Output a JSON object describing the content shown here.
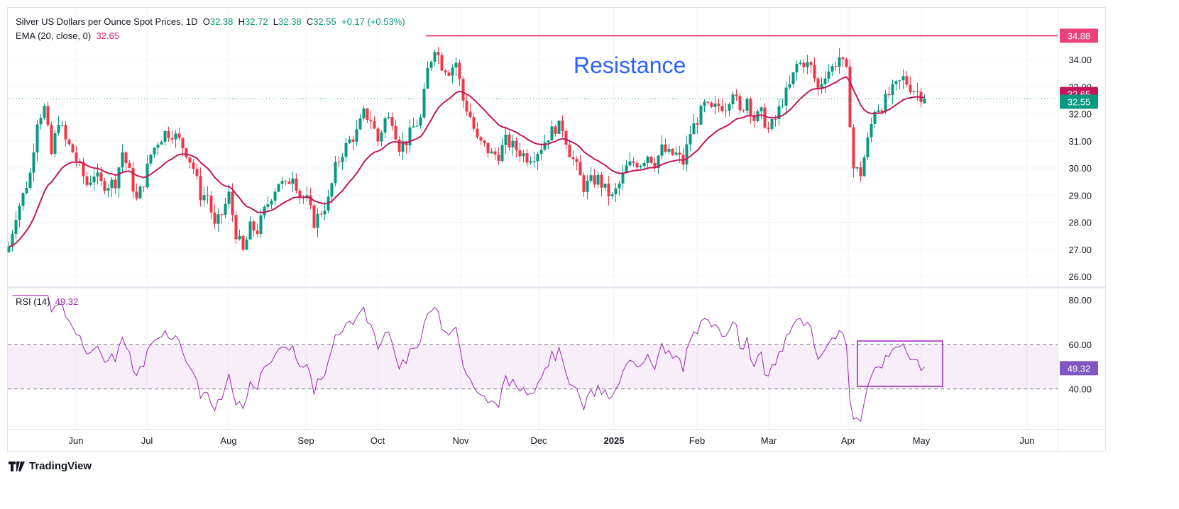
{
  "header": {
    "symbol_title": "Silver US Dollars per Ounce Spot Prices, 1D",
    "open_label": "O",
    "open": "32.38",
    "high_label": "H",
    "high": "32.72",
    "low_label": "L",
    "low": "32.38",
    "close_label": "C",
    "close": "32.55",
    "change": "+0.17 (+0.53%)"
  },
  "ema_legend": {
    "label": "EMA (20, close, 0)",
    "value": "32.65"
  },
  "rsi_legend": {
    "label": "RSI (14)",
    "value": "49.32"
  },
  "annotation": {
    "text": "Resistance",
    "level": 34.88,
    "level_label": "34.88"
  },
  "price_tags": {
    "ema": "32.65",
    "close": "32.55",
    "rsi": "49.32"
  },
  "brand": {
    "name": "TradingView"
  },
  "colors": {
    "up": "#089981",
    "down": "#f23645",
    "ema": "#c2185b",
    "resistance": "#ec407a",
    "rsi": "#9c27b0",
    "annotation": "#2962ff"
  },
  "chart_data": {
    "type": "candlestick",
    "title": "Silver US Dollars per Ounce Spot Prices, 1D",
    "price_axis": {
      "range": [
        26,
        35
      ],
      "ticks": [
        "34.00",
        "33.00",
        "32.00",
        "31.00",
        "30.00",
        "29.00",
        "28.00",
        "27.00",
        "26.00"
      ]
    },
    "rsi_axis": {
      "range": [
        20,
        85
      ],
      "ticks": [
        "80.00",
        "60.00",
        "40.00"
      ],
      "band": [
        40,
        60
      ]
    },
    "x_ticks": [
      "Jun",
      "Jul",
      "Aug",
      "Sep",
      "Oct",
      "Nov",
      "Dec",
      "2025",
      "Feb",
      "Mar",
      "Apr",
      "May",
      "Jun"
    ],
    "approx_closes_every_2_days": [
      27.1,
      28.3,
      29.0,
      29.8,
      31.8,
      32.2,
      30.5,
      31.8,
      31.0,
      30.6,
      30.0,
      29.4,
      29.8,
      29.4,
      29.4,
      29.5,
      30.6,
      29.8,
      28.8,
      29.5,
      30.5,
      31.0,
      31.3,
      31.3,
      31.0,
      30.6,
      30.0,
      29.0,
      29.0,
      27.8,
      28.3,
      29.0,
      27.6,
      26.9,
      27.8,
      27.7,
      28.4,
      29.0,
      29.5,
      29.3,
      29.8,
      29.0,
      28.8,
      28.0,
      28.4,
      28.8,
      30.0,
      30.6,
      31.0,
      31.3,
      32.0,
      31.8,
      31.0,
      31.8,
      31.8,
      30.8,
      31.0,
      31.5,
      31.8,
      33.6,
      34.5,
      33.8,
      33.6,
      33.9,
      32.5,
      31.9,
      31.0,
      30.8,
      30.5,
      30.5,
      31.0,
      30.8,
      30.6,
      30.4,
      30.5,
      30.8,
      31.2,
      31.5,
      31.5,
      30.6,
      30.0,
      29.3,
      29.5,
      29.6,
      29.2,
      28.9,
      29.4,
      30.0,
      30.2,
      30.2,
      30.5,
      30.2,
      30.7,
      30.5,
      30.5,
      30.2,
      31.3,
      31.8,
      32.3,
      32.1,
      32.3,
      32.3,
      32.9,
      32.0,
      32.6,
      31.8,
      32.0,
      31.4,
      31.8,
      32.5,
      33.0,
      33.8,
      33.9,
      33.7,
      32.9,
      33.5,
      33.7,
      34.1,
      33.5,
      30.0,
      29.8,
      31.0,
      32.2,
      32.3,
      32.7,
      33.0,
      33.3,
      33.0,
      32.8,
      32.55
    ],
    "last_bar": {
      "open": 32.38,
      "high": 32.72,
      "low": 32.38,
      "close": 32.55
    },
    "ema_period": 20,
    "rsi_period": 14,
    "ema_last": 32.65,
    "rsi_last": 49.32
  }
}
